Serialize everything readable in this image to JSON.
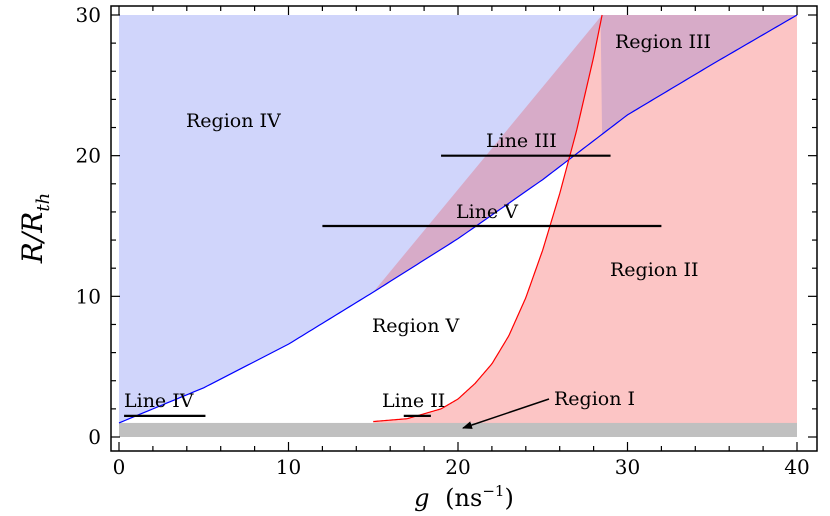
{
  "chart_data": {
    "type": "area",
    "xlabel": "g (ns⁻¹)",
    "xlabel_parts": {
      "var": "g",
      "unit": "ns",
      "exp": "−1"
    },
    "ylabel": "R/R_th",
    "ylabel_parts": {
      "var": "R/R",
      "sub": "th"
    },
    "xlim": [
      0,
      40
    ],
    "ylim": [
      0,
      30
    ],
    "x_ticks": [
      0,
      10,
      20,
      30,
      40
    ],
    "y_ticks": [
      0,
      10,
      20,
      30
    ],
    "grid": false,
    "colors": {
      "region_iv": "#d0d5fb",
      "region_ii": "#fcc5c5",
      "region_iii": "#d7abc8",
      "region_i": "#c0c0c0",
      "blue_curve": "#0000ff",
      "red_curve": "#ff0000",
      "segment": "#000000"
    },
    "region_i_top": 1,
    "blue_curve": {
      "x": [
        0,
        5,
        10,
        15,
        20,
        25,
        30,
        35,
        40
      ],
      "y": [
        1,
        3.5,
        6.6,
        10.3,
        14.1,
        18.3,
        22.9,
        26.5,
        30
      ]
    },
    "red_curve": {
      "x": [
        15,
        17,
        19,
        20,
        21,
        22,
        23,
        24,
        25,
        26,
        27,
        28,
        28.5
      ],
      "y": [
        1.1,
        1.3,
        2.0,
        2.7,
        3.8,
        5.2,
        7.2,
        9.9,
        13.3,
        17.3,
        21.8,
        27.0,
        30
      ]
    },
    "lines": [
      {
        "name": "Line III",
        "x": [
          19,
          29
        ],
        "y": 20
      },
      {
        "name": "Line V",
        "x": [
          12,
          32
        ],
        "y": 15
      },
      {
        "name": "Line IV",
        "x": [
          0.3,
          5.1
        ],
        "y": 1.5
      },
      {
        "name": "Line II",
        "x": [
          16.8,
          18.4
        ],
        "y": 1.5
      }
    ],
    "annotations": [
      {
        "text": "Region I",
        "arrow_to": [
          20,
          0.5
        ]
      }
    ],
    "region_labels": [
      "Region I",
      "Region II",
      "Region III",
      "Region IV",
      "Region V"
    ]
  }
}
